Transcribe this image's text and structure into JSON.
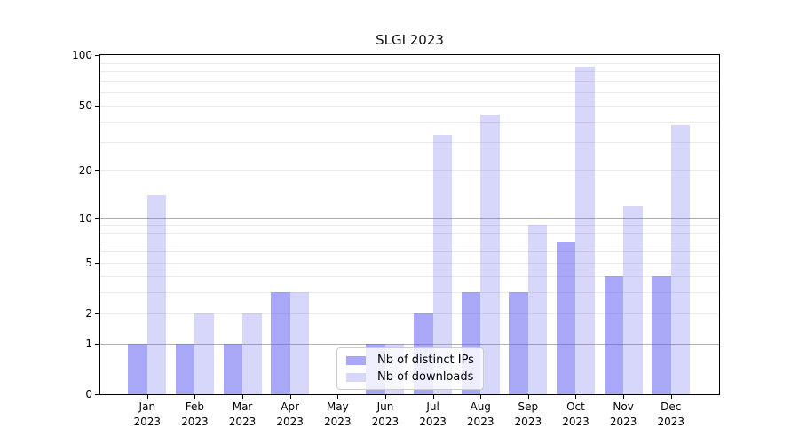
{
  "title": "SLGI 2023",
  "chart_data": {
    "type": "bar",
    "title": "SLGI 2023",
    "categories": [
      "Jan",
      "Feb",
      "Mar",
      "Apr",
      "May",
      "Jun",
      "Jul",
      "Aug",
      "Sep",
      "Oct",
      "Nov",
      "Dec"
    ],
    "category_year": "2023",
    "series": [
      {
        "name": "Nb of distinct IPs",
        "color": "rgba(96,96,240,0.55)",
        "values": [
          1,
          1,
          1,
          3,
          0,
          1,
          2,
          3,
          3,
          7,
          4,
          4
        ]
      },
      {
        "name": "Nb of downloads",
        "color": "rgba(96,96,240,0.25)",
        "values": [
          14,
          2,
          2,
          3,
          0,
          1,
          33,
          44,
          9,
          85,
          12,
          38
        ]
      }
    ],
    "yaxis": {
      "scale": "symlog (pos ~ log10(1+v))",
      "min": 0,
      "max": 100,
      "tick_labels": [
        "100",
        "50",
        "20",
        "10",
        "5",
        "2",
        "1",
        "0"
      ],
      "tick_values": [
        100,
        50,
        20,
        10,
        5,
        2,
        1,
        0
      ],
      "major_gridlines": [
        1,
        10
      ],
      "minor_gridlines": [
        2,
        3,
        4,
        5,
        6,
        7,
        8,
        9,
        20,
        30,
        40,
        50,
        60,
        70,
        80,
        90
      ]
    },
    "legend": {
      "location": "lower center (inside plot)"
    },
    "grid": true
  },
  "colors": {
    "bar_distinct_ips": "rgba(96,96,240,0.55)",
    "bar_downloads": "rgba(96,96,240,0.25)",
    "major_grid": "#b0b0b0",
    "minor_grid": "#ebebeb",
    "axis_frame": "#000000",
    "legend_bg": "rgba(255,255,255,0.8)",
    "legend_border": "#cccccc"
  }
}
